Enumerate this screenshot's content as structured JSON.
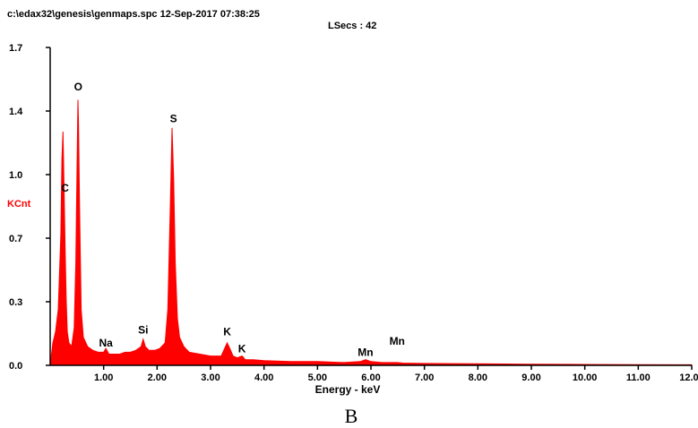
{
  "header": {
    "file_line": "c:\\edax32\\genesis\\genmaps.spc  12-Sep-2017 07:38:25",
    "lsecs_line": "LSecs :  42"
  },
  "caption": "B",
  "colors": {
    "spectrum": "#ff0000",
    "ylabel": "#ff0000",
    "axis": "#000000"
  },
  "chart_data": {
    "type": "area",
    "title": "",
    "xlabel": "Energy - keV",
    "ylabel": "KCnt",
    "xlim": [
      0.0,
      12.0
    ],
    "ylim": [
      0.0,
      1.7
    ],
    "x_ticks": [
      1.0,
      2.0,
      3.0,
      4.0,
      5.0,
      6.0,
      7.0,
      8.0,
      9.0,
      10.0,
      11.0,
      12.0
    ],
    "x_tick_labels": [
      "1.00",
      "2.00",
      "3.00",
      "4.00",
      "5.00",
      "6.00",
      "7.00",
      "8.00",
      "9.00",
      "10.00",
      "11.00",
      "12.00"
    ],
    "y_ticks": [
      0.0,
      0.34,
      0.68,
      1.02,
      1.36,
      1.7
    ],
    "y_tick_labels": [
      "0.0",
      "0.3",
      "0.7",
      "1.0",
      "1.4",
      "1.7"
    ],
    "series": [
      {
        "x": [
          0.0,
          0.05,
          0.1,
          0.15,
          0.2,
          0.22,
          0.24,
          0.26,
          0.28,
          0.3,
          0.32,
          0.35,
          0.4,
          0.45,
          0.48,
          0.5,
          0.52,
          0.53,
          0.55,
          0.58,
          0.62,
          0.7,
          0.8,
          0.9,
          1.0,
          1.04,
          1.1,
          1.2,
          1.3,
          1.4,
          1.5,
          1.6,
          1.7,
          1.74,
          1.78,
          1.85,
          1.95,
          2.05,
          2.15,
          2.2,
          2.25,
          2.28,
          2.31,
          2.34,
          2.38,
          2.42,
          2.5,
          2.6,
          2.8,
          3.0,
          3.2,
          3.31,
          3.36,
          3.42,
          3.5,
          3.59,
          3.65,
          3.8,
          4.0,
          4.5,
          5.0,
          5.5,
          5.8,
          5.9,
          6.0,
          6.2,
          6.49,
          6.6,
          7.0,
          8.0,
          9.0,
          10.0,
          11.0,
          12.0
        ],
        "y": [
          0.0,
          0.12,
          0.18,
          0.3,
          0.7,
          1.1,
          1.25,
          0.95,
          0.62,
          0.35,
          0.18,
          0.12,
          0.1,
          0.2,
          0.55,
          1.0,
          1.42,
          1.3,
          0.85,
          0.3,
          0.15,
          0.1,
          0.08,
          0.07,
          0.07,
          0.09,
          0.06,
          0.06,
          0.06,
          0.07,
          0.07,
          0.08,
          0.1,
          0.14,
          0.1,
          0.08,
          0.08,
          0.09,
          0.12,
          0.3,
          0.9,
          1.27,
          1.0,
          0.55,
          0.25,
          0.15,
          0.1,
          0.07,
          0.06,
          0.05,
          0.05,
          0.12,
          0.09,
          0.05,
          0.04,
          0.05,
          0.03,
          0.03,
          0.025,
          0.02,
          0.02,
          0.015,
          0.02,
          0.03,
          0.02,
          0.015,
          0.015,
          0.012,
          0.01,
          0.008,
          0.006,
          0.005,
          0.004,
          0.003
        ]
      }
    ],
    "annotations": [
      {
        "text": "C",
        "x": 0.277,
        "y": 0.93
      },
      {
        "text": "O",
        "x": 0.525,
        "y": 1.47
      },
      {
        "text": "S",
        "x": 2.307,
        "y": 1.3
      },
      {
        "text": "Na",
        "x": 1.041,
        "y": 0.1
      },
      {
        "text": "Si",
        "x": 1.74,
        "y": 0.17
      },
      {
        "text": "K",
        "x": 3.312,
        "y": 0.16
      },
      {
        "text": "K",
        "x": 3.589,
        "y": 0.07
      },
      {
        "text": "Mn",
        "x": 5.898,
        "y": 0.05
      },
      {
        "text": "Mn",
        "x": 6.49,
        "y": 0.11
      }
    ]
  }
}
